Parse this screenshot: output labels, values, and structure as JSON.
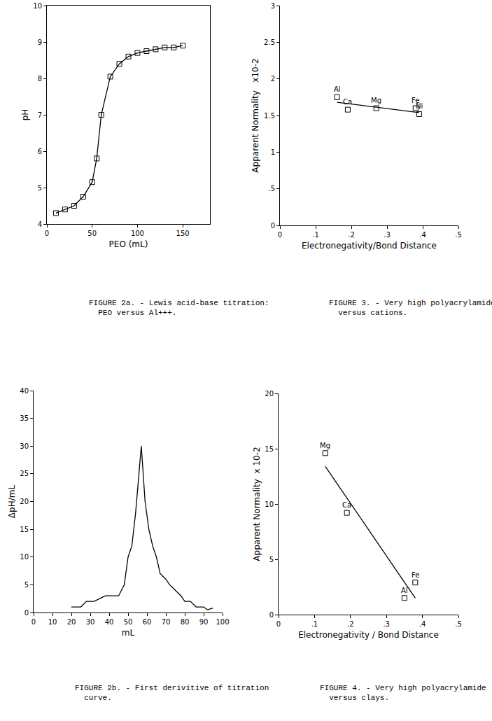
{
  "chart_data": [
    {
      "type": "line",
      "title": "FIGURE 2a. - Lewis acid-base titration:\n  PEO versus Al+++.",
      "x_label": "PEO (mL)",
      "y_label": "pH",
      "xlim": [
        0,
        180
      ],
      "xticks": [
        0,
        50,
        100,
        150
      ],
      "ylim": [
        4,
        10
      ],
      "yticks": [
        4,
        5,
        6,
        7,
        8,
        9,
        10
      ],
      "grid": false,
      "series": [
        {
          "type": "line",
          "color": "#000000",
          "marker": "square-open",
          "line_style": "solid",
          "x": [
            10,
            20,
            30,
            40,
            50,
            55,
            60,
            70,
            80,
            90,
            100,
            110,
            120,
            130,
            140,
            150
          ],
          "values": [
            4.3,
            4.4,
            4.5,
            4.75,
            5.15,
            5.8,
            7.0,
            8.05,
            8.4,
            8.6,
            8.7,
            8.75,
            8.8,
            8.85,
            8.85,
            8.9
          ]
        }
      ]
    },
    {
      "type": "scatter",
      "title": "FIGURE 3. - Very high polyacrylamide\n  versus cations.",
      "x_label": "Electronegativity/Bond Distance",
      "y_label": "Apparent Normality   x10-2",
      "xlim": [
        0,
        0.5
      ],
      "xticks": [
        0,
        {
          "value": 0.1,
          "label": ".1"
        },
        {
          "value": 0.2,
          "label": ".2"
        },
        {
          "value": 0.3,
          "label": ".3"
        },
        {
          "value": 0.4,
          "label": ".4"
        },
        {
          "value": 0.5,
          "label": ".5"
        }
      ],
      "ylim": [
        0,
        3
      ],
      "yticks": [
        0,
        {
          "value": 0.5,
          "label": ".5"
        },
        1,
        1.5,
        2,
        2.5,
        3
      ],
      "grid": false,
      "series": [
        {
          "type": "scatter",
          "color": "#000000",
          "marker": "square-open",
          "x": [
            0.16,
            0.19,
            0.27,
            0.38,
            0.39
          ],
          "values": [
            1.75,
            1.58,
            1.6,
            1.6,
            1.52
          ],
          "labels": [
            "Al",
            "Ca",
            "Mg",
            "Fe",
            "Ni"
          ]
        },
        {
          "type": "line",
          "color": "#000000",
          "line_style": "solid",
          "x": [
            0.16,
            0.39
          ],
          "values": [
            1.68,
            1.54
          ]
        }
      ]
    },
    {
      "type": "line",
      "title": "FIGURE 2b. - First derivitive of titration\n  curve.",
      "x_label": "mL",
      "y_label": "ΔpH/mL",
      "xlim": [
        0,
        100
      ],
      "xticks": [
        0,
        10,
        20,
        30,
        40,
        50,
        60,
        70,
        80,
        90,
        100
      ],
      "ylim": [
        0,
        40
      ],
      "yticks": [
        0,
        5,
        10,
        15,
        20,
        25,
        30,
        35,
        40
      ],
      "grid": false,
      "series": [
        {
          "type": "line",
          "color": "#000000",
          "line_style": "solid",
          "x": [
            20,
            25,
            28,
            32,
            35,
            38,
            42,
            45,
            48,
            50,
            52,
            54,
            57,
            59,
            61,
            63,
            65,
            67,
            70,
            72,
            75,
            78,
            80,
            83,
            86,
            90,
            92,
            95
          ],
          "values": [
            1,
            1,
            2,
            2,
            2.5,
            3,
            3,
            3,
            5,
            10,
            12,
            18,
            30,
            20,
            15,
            12,
            10,
            7,
            6,
            5,
            4,
            3,
            2,
            2,
            1,
            1,
            0.5,
            0.8
          ]
        }
      ]
    },
    {
      "type": "scatter",
      "title": "FIGURE 4. - Very high polyacrylamide\n  versus clays.",
      "x_label": "Electronegativity / Bond Distance",
      "y_label": "Apparent Normality  x 10-2",
      "xlim": [
        0,
        0.5
      ],
      "xticks": [
        0,
        {
          "value": 0.1,
          "label": ".1"
        },
        {
          "value": 0.2,
          "label": ".2"
        },
        {
          "value": 0.3,
          "label": ".3"
        },
        {
          "value": 0.4,
          "label": ".4"
        },
        {
          "value": 0.5,
          "label": ".5"
        }
      ],
      "ylim": [
        0,
        20
      ],
      "yticks": [
        0,
        5,
        10,
        15,
        20
      ],
      "grid": false,
      "series": [
        {
          "type": "scatter",
          "color": "#000000",
          "marker": "square-open",
          "x": [
            0.13,
            0.19,
            0.38,
            0.35
          ],
          "values": [
            14.6,
            9.2,
            2.9,
            1.5
          ],
          "labels": [
            "Mg",
            "Ca",
            "Fe",
            "Al"
          ]
        },
        {
          "type": "line",
          "color": "#000000",
          "line_style": "solid",
          "x": [
            0.13,
            0.38
          ],
          "values": [
            13.4,
            1.5
          ]
        }
      ]
    }
  ]
}
